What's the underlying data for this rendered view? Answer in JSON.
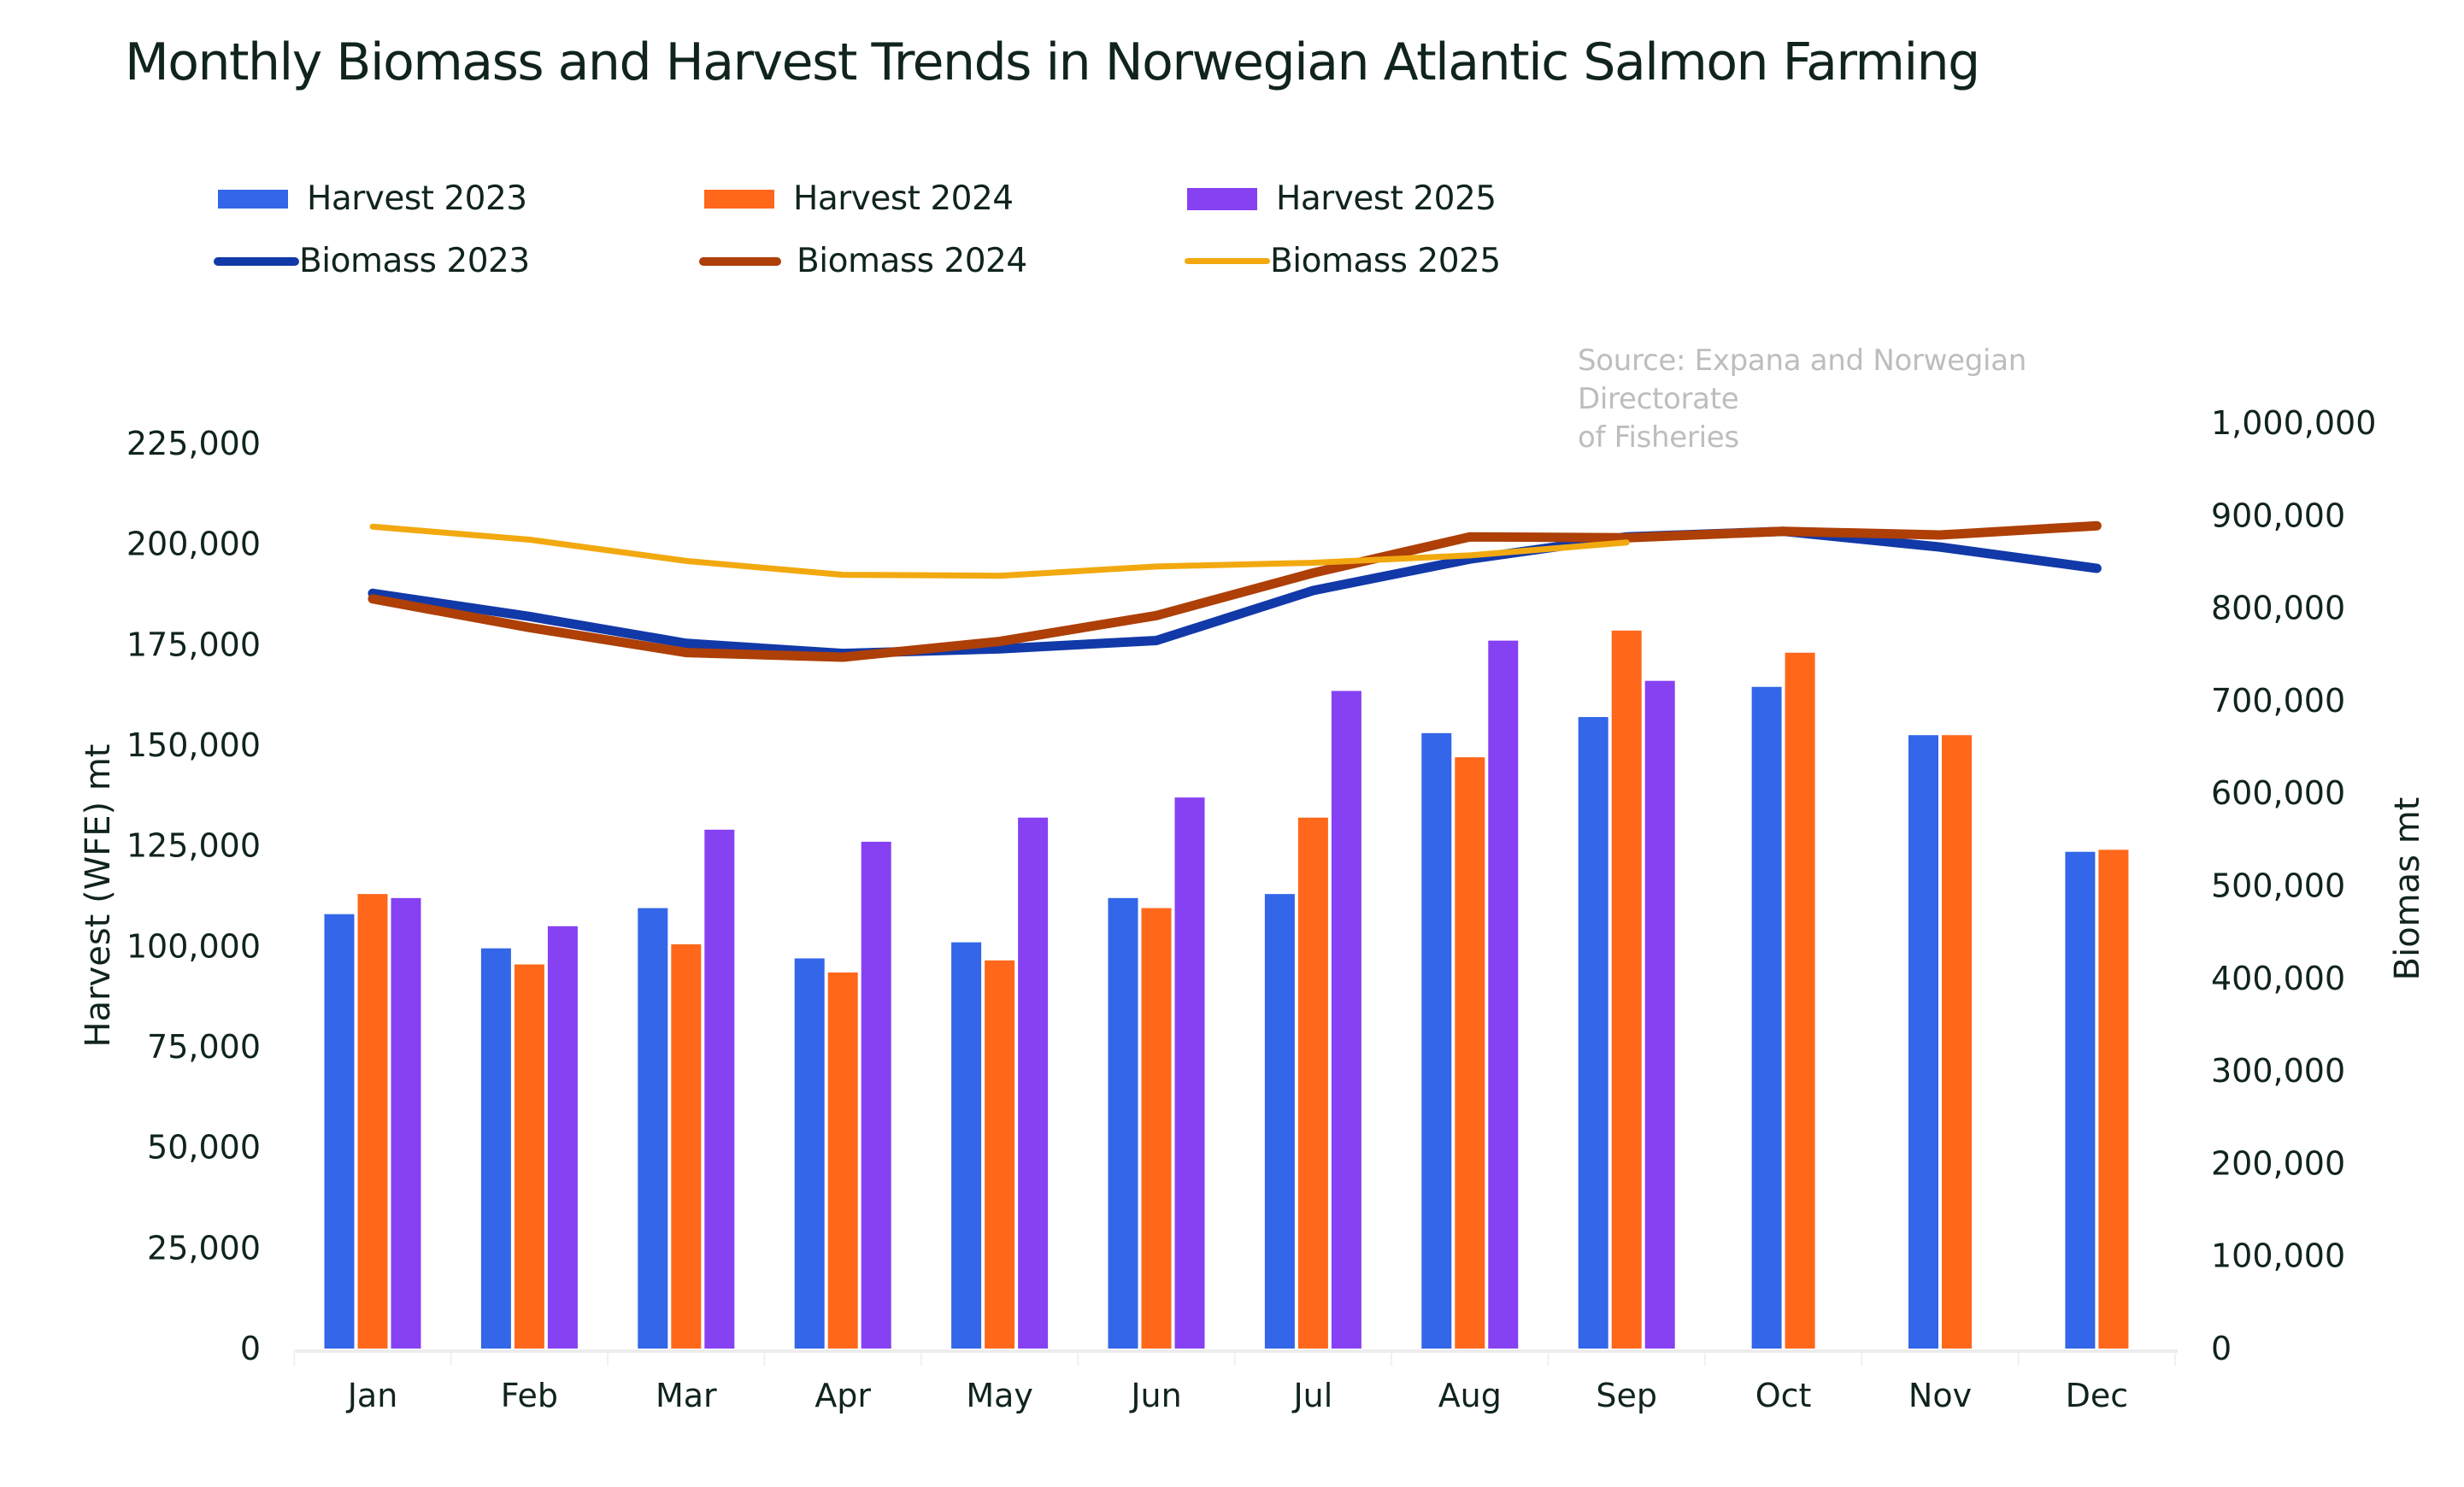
{
  "chart_data": {
    "type": "bar",
    "title": "Monthly Biomass  and Harvest Trends in Norwegian Atlantic Salmon Farming",
    "source": "Source: Expana and Norwegian Directorate of Fisheries",
    "source_lines": [
      "Source: Expana and Norwegian Directorate",
      "of Fisheries"
    ],
    "categories": [
      "Jan",
      "Feb",
      "Mar",
      "Apr",
      "May",
      "Jun",
      "Jul",
      "Aug",
      "Sep",
      "Oct",
      "Nov",
      "Dec"
    ],
    "xlabel": "",
    "ylabel": "Harvest (WFE) mt",
    "y2label": "Biomas mt",
    "ylim": [
      0,
      225000
    ],
    "y2lim": [
      0,
      1000000
    ],
    "yticks": [
      "225,000",
      "200,000",
      "175,000",
      "150,000",
      "125,000",
      "100,000",
      "75,000",
      "50,000",
      "25,000",
      "0"
    ],
    "ytick_values": [
      225000,
      200000,
      175000,
      150000,
      125000,
      100000,
      75000,
      50000,
      25000,
      0
    ],
    "y2ticks": [
      "1,000,000",
      "900,000",
      "800,000",
      "700,000",
      "600,000",
      "500,000",
      "400,000",
      "300,000",
      "200,000",
      "100,000",
      "0"
    ],
    "y2tick_values": [
      1000000,
      900000,
      800000,
      700000,
      600000,
      500000,
      400000,
      300000,
      200000,
      100000,
      0
    ],
    "grid": false,
    "legend_position": "top-left",
    "bar_series": [
      {
        "name": "Harvest 2023",
        "color": "#3366e8",
        "axis": "left",
        "values": [
          108000,
          99500,
          109500,
          97000,
          101000,
          112000,
          113000,
          153000,
          157000,
          164500,
          152500,
          123500
        ]
      },
      {
        "name": "Harvest 2024",
        "color": "#ff671b",
        "axis": "left",
        "values": [
          113000,
          95500,
          100500,
          93500,
          96500,
          109500,
          132000,
          147000,
          178500,
          173000,
          152500,
          124000
        ]
      },
      {
        "name": "Harvest 2025",
        "color": "#8641f2",
        "axis": "left",
        "values": [
          112000,
          105000,
          129000,
          126000,
          132000,
          137000,
          163500,
          176000,
          166000,
          null,
          null,
          null
        ]
      }
    ],
    "line_series": [
      {
        "name": "Biomass 2023",
        "color": "#1239a8",
        "axis": "right",
        "width": "thick",
        "values": [
          816000,
          791000,
          762000,
          751000,
          756000,
          765000,
          819000,
          853000,
          877000,
          883000,
          866000,
          843000
        ]
      },
      {
        "name": "Biomass 2024",
        "color": "#ad3f07",
        "axis": "right",
        "width": "thick",
        "values": [
          810000,
          779000,
          752000,
          747000,
          764000,
          792000,
          838000,
          877000,
          876000,
          883000,
          879000,
          889000
        ]
      },
      {
        "name": "Biomass  2025",
        "color": "#f2a90f",
        "axis": "right",
        "width": "thin",
        "values": [
          888000,
          874000,
          851000,
          836000,
          835000,
          845000,
          849000,
          857000,
          871000,
          null,
          null,
          null
        ]
      }
    ]
  },
  "legend": {
    "items": [
      {
        "label": "Harvest 2023",
        "color": "#3366e8",
        "kind": "bar"
      },
      {
        "label": "Harvest 2024",
        "color": "#ff671b",
        "kind": "bar"
      },
      {
        "label": "Harvest 2025",
        "color": "#8641f2",
        "kind": "bar"
      },
      {
        "label": "Biomass 2023",
        "color": "#1239a8",
        "kind": "line"
      },
      {
        "label": "Biomass 2024",
        "color": "#ad3f07",
        "kind": "line"
      },
      {
        "label": "Biomass  2025",
        "color": "#f2a90f",
        "kind": "line-thin"
      }
    ]
  }
}
